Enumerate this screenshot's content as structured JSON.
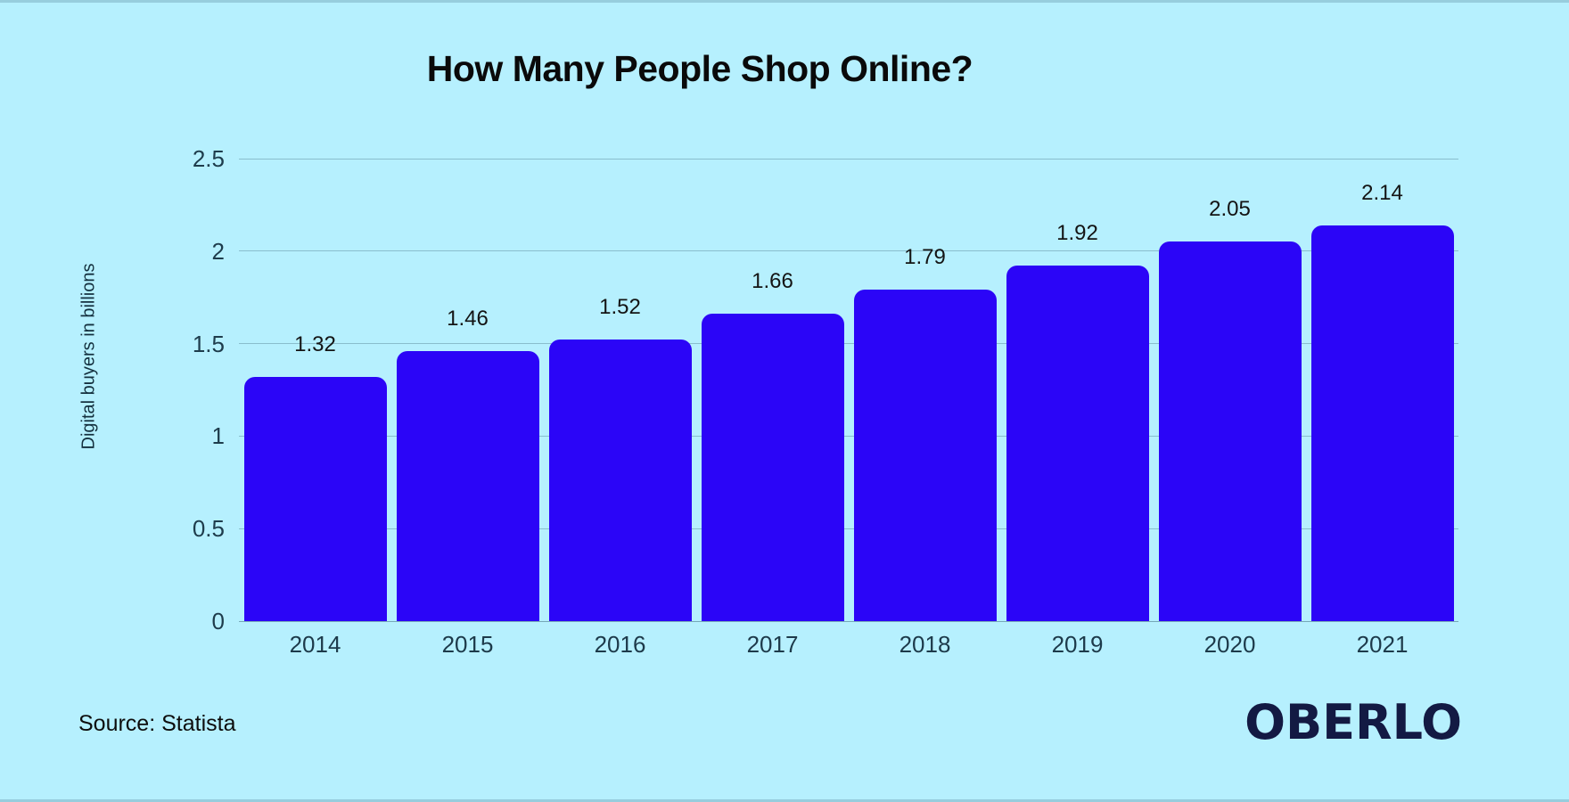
{
  "page": {
    "background_color": "#B6F0FE"
  },
  "chart_data": {
    "type": "bar",
    "title": "How Many People Shop Online?",
    "categories": [
      "2014",
      "2015",
      "2016",
      "2017",
      "2018",
      "2019",
      "2020",
      "2021"
    ],
    "values": [
      1.32,
      1.46,
      1.52,
      1.66,
      1.79,
      1.92,
      2.05,
      2.14
    ],
    "value_labels": [
      "1.32",
      "1.46",
      "1.52",
      "1.66",
      "1.79",
      "1.92",
      "2.05",
      "2.14"
    ],
    "xlabel": "",
    "ylabel": "Digital buyers in billions",
    "ylim": [
      0,
      2.5
    ],
    "ytick_labels": [
      "0",
      "0.5",
      "1",
      "1.5",
      "2",
      "2.5"
    ],
    "yticks": [
      0,
      0.5,
      1,
      1.5,
      2,
      2.5
    ],
    "grid": true,
    "legend_position": "none",
    "bar_color": "#2B05F7",
    "axis_text_color": "#1E3C4C",
    "value_label_color": "#141414",
    "title_color": "#0A0A0A"
  },
  "footer": {
    "source": "Source: Statista",
    "brand": "OBERLO"
  }
}
